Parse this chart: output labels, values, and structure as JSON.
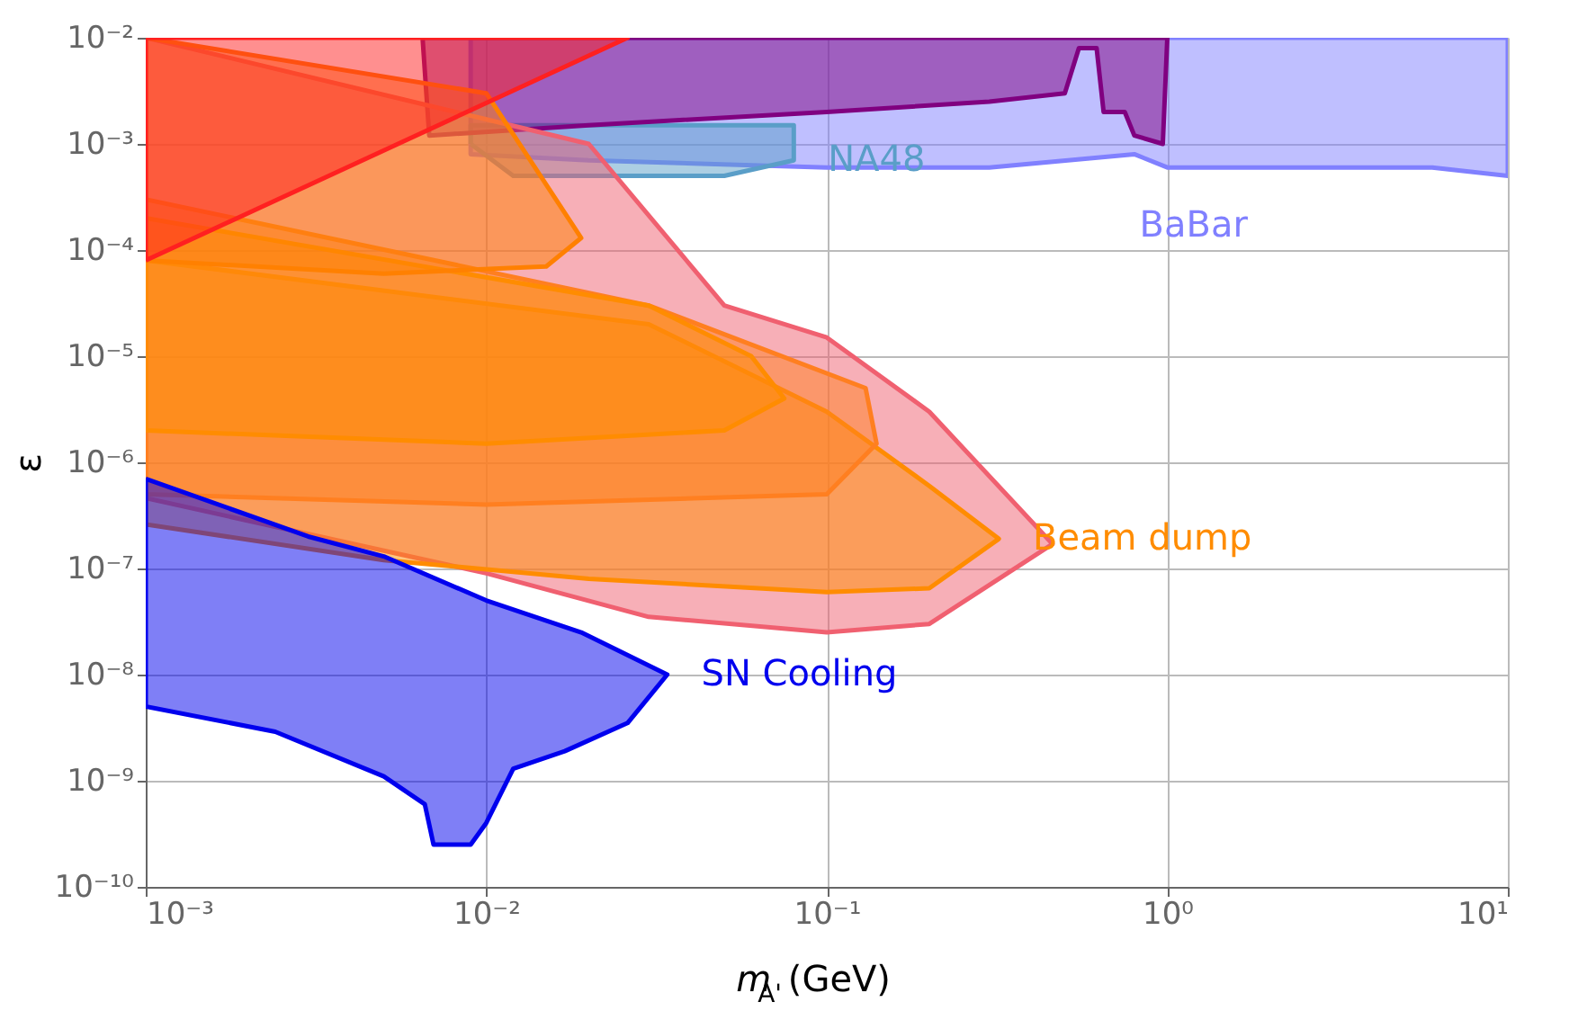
{
  "chart_data": {
    "type": "area",
    "xlabel": "m$_{A'}$ (GeV)",
    "ylabel": "ε",
    "log": "xy",
    "grid": true,
    "xlim": [
      0.001,
      10
    ],
    "ylim": [
      1e-10,
      0.01
    ],
    "xticks": [
      {
        "value": 0.001,
        "label": "10⁻³"
      },
      {
        "value": 0.01,
        "label": "10⁻²"
      },
      {
        "value": 0.1,
        "label": "10⁻¹"
      },
      {
        "value": 1,
        "label": "10⁰"
      },
      {
        "value": 10,
        "label": "10¹"
      }
    ],
    "yticks": [
      {
        "value": 1e-10,
        "label": "10⁻¹⁰"
      },
      {
        "value": 1e-09,
        "label": "10⁻⁹"
      },
      {
        "value": 1e-08,
        "label": "10⁻⁸"
      },
      {
        "value": 1e-07,
        "label": "10⁻⁷"
      },
      {
        "value": 1e-06,
        "label": "10⁻⁶"
      },
      {
        "value": 1e-05,
        "label": "10⁻⁵"
      },
      {
        "value": 0.0001,
        "label": "10⁻⁴"
      },
      {
        "value": 0.001,
        "label": "10⁻³"
      },
      {
        "value": 0.01,
        "label": "10⁻²"
      }
    ],
    "series": [
      {
        "name": "BaBar",
        "color": "#8080ff",
        "x": [
          0.009,
          0.009,
          0.02,
          0.1,
          0.3,
          0.8,
          1,
          3,
          6,
          10,
          10
        ],
        "values": [
          0.01,
          0.0008,
          0.0007,
          0.0006,
          0.0006,
          0.0008,
          0.0006,
          0.0006,
          0.0006,
          0.0005,
          0.01
        ]
      },
      {
        "name": "NA48",
        "color": "#5a9ec8",
        "x": [
          0.009,
          0.012,
          0.03,
          0.05,
          0.08,
          0.08,
          0.009
        ],
        "values": [
          0.001,
          0.0005,
          0.0005,
          0.0005,
          0.0007,
          0.0015,
          0.0015
        ]
      },
      {
        "color": "#800080",
        "x": [
          0.0065,
          0.0068,
          0.02,
          0.1,
          0.3,
          0.5,
          0.55,
          0.62,
          0.65,
          0.75,
          0.8,
          0.97,
          1
        ],
        "values": [
          0.01,
          0.0012,
          0.0015,
          0.002,
          0.0025,
          0.003,
          0.008,
          0.008,
          0.002,
          0.002,
          0.0012,
          0.001,
          0.01
        ]
      },
      {
        "color": "#f06070",
        "x": [
          0.001,
          0.02,
          0.05,
          0.1,
          0.2,
          0.46,
          0.2,
          0.1,
          0.03,
          0.01,
          0.001
        ],
        "values": [
          0.01,
          0.001,
          3e-05,
          1.5e-05,
          3e-06,
          1.7e-07,
          3e-08,
          2.5e-08,
          3.5e-08,
          9e-08,
          4.6e-07
        ]
      },
      {
        "name": "Beam dump",
        "color": "#ff8c00",
        "x": [
          0.001,
          0.03,
          0.1,
          0.2,
          0.32,
          0.2,
          0.1,
          0.02,
          0.005,
          0.001
        ],
        "values": [
          8e-05,
          2e-05,
          3e-06,
          6e-07,
          1.9e-07,
          6.5e-08,
          6e-08,
          8e-08,
          1.2e-07,
          2.6e-07
        ]
      },
      {
        "color": "#ff7f20",
        "x": [
          0.001,
          0.03,
          0.13,
          0.14,
          0.1,
          0.01,
          0.001
        ],
        "values": [
          0.0003,
          3e-05,
          5e-06,
          1.5e-06,
          5e-07,
          4e-07,
          5e-07
        ]
      },
      {
        "color": "#ff8c00",
        "x": [
          0.001,
          0.03,
          0.06,
          0.075,
          0.05,
          0.01,
          0.001
        ],
        "values": [
          0.0002,
          3e-05,
          1e-05,
          4e-06,
          2e-06,
          1.5e-06,
          2e-06
        ]
      },
      {
        "color": "#ff8000",
        "x": [
          0.001,
          0.01,
          0.019,
          0.015,
          0.005,
          0.001
        ],
        "values": [
          0.01,
          0.003,
          0.00013,
          7e-05,
          6e-05,
          8e-05
        ]
      },
      {
        "color": "#ff2020",
        "x": [
          0.001,
          0.026,
          0.001
        ],
        "values": [
          8e-05,
          0.01,
          0.01
        ]
      },
      {
        "name": "SN Cooling",
        "color": "#0000ee",
        "x": [
          0.001,
          0.003,
          0.005,
          0.01,
          0.019,
          0.034,
          0.026,
          0.017,
          0.012,
          0.01,
          0.009,
          0.007,
          0.0066,
          0.005,
          0.0024,
          0.001
        ],
        "values": [
          7e-07,
          2e-07,
          1.3e-07,
          5e-08,
          2.5e-08,
          1e-08,
          3.5e-09,
          1.9e-09,
          1.3e-09,
          4e-10,
          2.5e-10,
          2.5e-10,
          6e-10,
          1.1e-09,
          2.9e-09,
          5e-09
        ]
      }
    ]
  }
}
